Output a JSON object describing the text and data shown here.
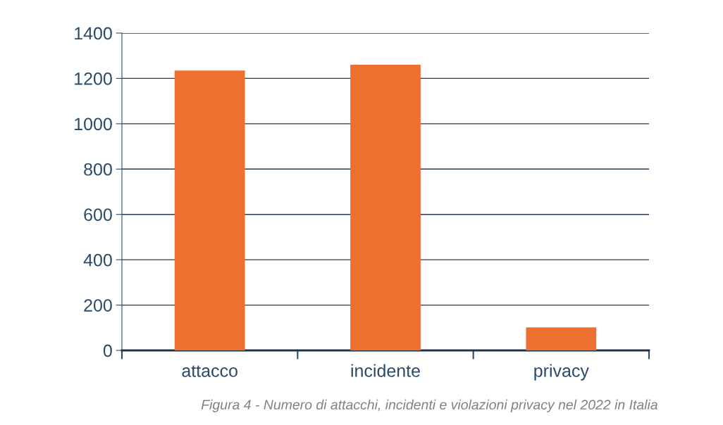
{
  "chart_data": {
    "type": "bar",
    "categories": [
      "attacco",
      "incidente",
      "privacy"
    ],
    "values": [
      1235,
      1260,
      102
    ],
    "color": "#ee7030",
    "ylim": [
      0,
      1400
    ],
    "yticks": [
      0,
      200,
      400,
      600,
      800,
      1000,
      1200,
      1400
    ],
    "grid": "y",
    "annotations": [
      "Figura 4 - Numero di attacchi, incidenti e violazioni privacy nel 2022 in Italia"
    ]
  }
}
